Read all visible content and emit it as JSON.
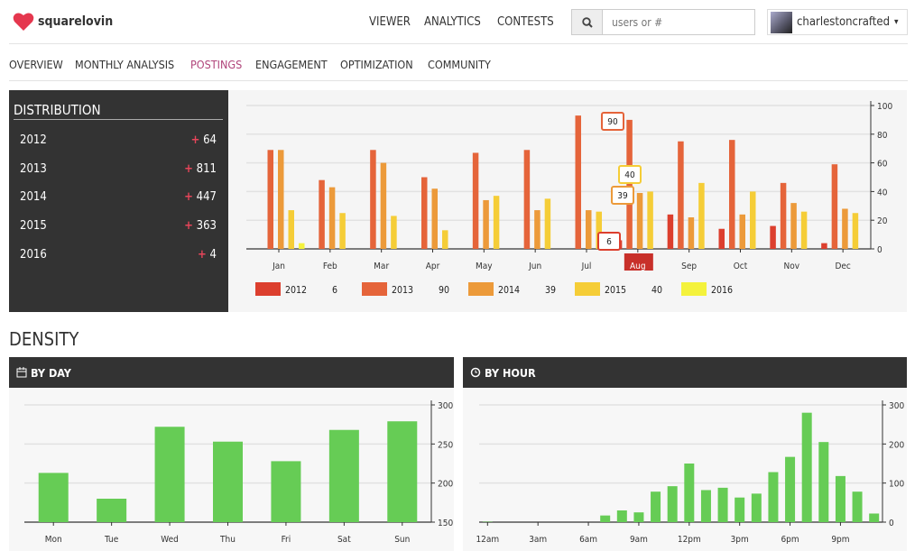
{
  "brand": {
    "name": "squarelovin",
    "color": "#e5374e"
  },
  "nav": [
    "VIEWER",
    "ANALYTICS",
    "CONTESTS"
  ],
  "search": {
    "placeholder": "users or #",
    "icon": "search-icon"
  },
  "user": {
    "name": "charlestoncrafted",
    "caret": "▾"
  },
  "subnav": {
    "items": [
      "OVERVIEW",
      "MONTHLY ANALYSIS",
      "POSTINGS",
      "ENGAGEMENT",
      "OPTIMIZATION",
      "COMMUNITY"
    ],
    "active": "POSTINGS"
  },
  "distribution": {
    "title": "DISTRIBUTION",
    "rows": [
      {
        "year": "2012",
        "value": "64"
      },
      {
        "year": "2013",
        "value": "811"
      },
      {
        "year": "2014",
        "value": "447"
      },
      {
        "year": "2015",
        "value": "363"
      },
      {
        "year": "2016",
        "value": "4"
      }
    ]
  },
  "density": {
    "title": "DENSITY",
    "by_day_title": "BY DAY",
    "by_hour_title": "BY HOUR"
  },
  "chart_data": [
    {
      "type": "bar",
      "categories": [
        "Jan",
        "Feb",
        "Mar",
        "Apr",
        "May",
        "Jun",
        "Jul",
        "Aug",
        "Sep",
        "Oct",
        "Nov",
        "Dec"
      ],
      "ylim": [
        0,
        100
      ],
      "yticks": [
        0,
        20,
        40,
        60,
        80,
        100
      ],
      "grid": true,
      "legend": "bottom",
      "highlight_category": "Aug",
      "series": [
        {
          "name": "2012",
          "color": "#dc3f2e",
          "legend_value": "6",
          "values": [
            0,
            0,
            0,
            0,
            0,
            0,
            0,
            6,
            24,
            14,
            16,
            4
          ]
        },
        {
          "name": "2013",
          "color": "#e5643a",
          "legend_value": "90",
          "values": [
            69,
            48,
            69,
            50,
            67,
            69,
            93,
            90,
            75,
            76,
            46,
            59
          ]
        },
        {
          "name": "2014",
          "color": "#ec9a3a",
          "legend_value": "39",
          "values": [
            69,
            43,
            60,
            42,
            34,
            27,
            27,
            39,
            22,
            24,
            32,
            28
          ]
        },
        {
          "name": "2015",
          "color": "#f5cd37",
          "legend_value": "40",
          "values": [
            27,
            25,
            23,
            13,
            37,
            35,
            26,
            40,
            46,
            40,
            26,
            25
          ]
        },
        {
          "name": "2016",
          "color": "#f4f23c",
          "legend_value": "",
          "values": [
            4,
            0,
            0,
            0,
            0,
            0,
            0,
            0,
            0,
            0,
            0,
            0
          ]
        }
      ],
      "tooltips": [
        {
          "series": "2012",
          "value": "6"
        },
        {
          "series": "2013",
          "value": "90"
        },
        {
          "series": "2014",
          "value": "39"
        },
        {
          "series": "2015",
          "value": "40"
        }
      ]
    },
    {
      "type": "bar",
      "categories": [
        "Mon",
        "Tue",
        "Wed",
        "Thu",
        "Fri",
        "Sat",
        "Sun"
      ],
      "values": [
        213,
        180,
        272,
        253,
        228,
        268,
        279
      ],
      "ylim": [
        150,
        300
      ],
      "yticks": [
        150,
        200,
        250,
        300
      ],
      "color": "#66cc55",
      "grid": true
    },
    {
      "type": "bar",
      "x": [
        "12am",
        "1am",
        "2am",
        "3am",
        "4am",
        "5am",
        "6am",
        "7am",
        "8am",
        "9am",
        "10am",
        "11am",
        "12pm",
        "1pm",
        "2pm",
        "3pm",
        "4pm",
        "5pm",
        "6pm",
        "7pm",
        "8pm",
        "9pm",
        "10pm",
        "11pm"
      ],
      "xticks": [
        "12am",
        "3am",
        "6am",
        "9am",
        "12pm",
        "3pm",
        "6pm",
        "9pm"
      ],
      "values": [
        1,
        0,
        0,
        0,
        0,
        0,
        0,
        17,
        30,
        25,
        78,
        92,
        150,
        82,
        88,
        63,
        73,
        128,
        167,
        280,
        205,
        118,
        78,
        22
      ],
      "ylim": [
        0,
        300
      ],
      "yticks": [
        0,
        100,
        200,
        300
      ],
      "color": "#66cc55",
      "grid": true
    }
  ]
}
